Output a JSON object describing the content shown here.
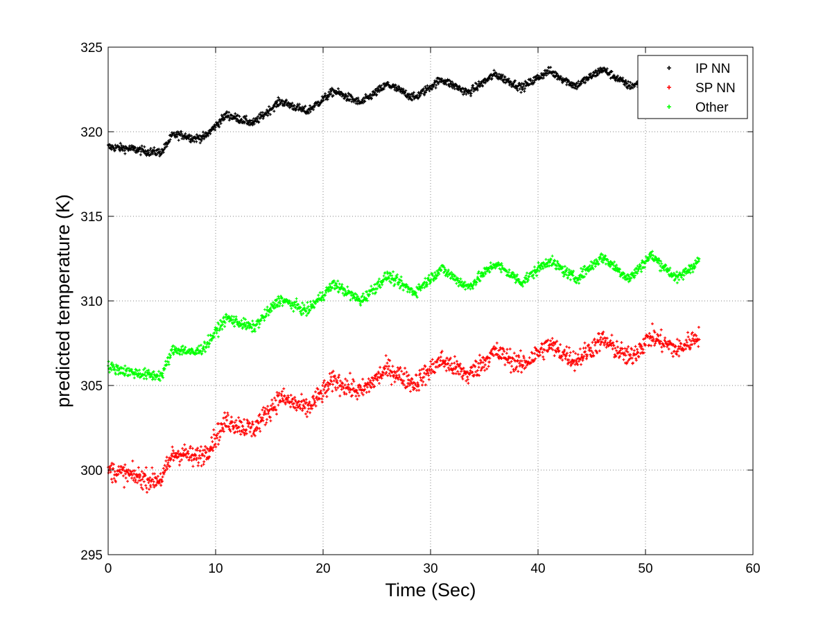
{
  "chart_data": {
    "type": "scatter",
    "title": "",
    "xlabel": "Time (Sec)",
    "ylabel": "predicted temperature (K)",
    "xlim": [
      0,
      60
    ],
    "ylim": [
      295,
      325
    ],
    "xticks": [
      0,
      10,
      20,
      30,
      40,
      50,
      60
    ],
    "yticks": [
      295,
      300,
      305,
      310,
      315,
      320,
      325
    ],
    "grid": true,
    "legend_position": "top-right",
    "series": [
      {
        "name": "IP NN",
        "color": "#000000",
        "noise": 0.12,
        "x": [
          0,
          2,
          4,
          5,
          6,
          7,
          8,
          9,
          11,
          13.5,
          16,
          18.5,
          21,
          23.5,
          26,
          28.5,
          31,
          33.5,
          36,
          38.5,
          41,
          43.5,
          46,
          48.5,
          50.5,
          55
        ],
        "y": [
          319.1,
          319.0,
          318.8,
          318.8,
          319.8,
          319.8,
          319.6,
          319.7,
          321.0,
          320.5,
          321.8,
          321.2,
          322.4,
          321.7,
          322.8,
          322.0,
          323.1,
          322.3,
          323.4,
          322.6,
          323.6,
          322.7,
          323.7,
          322.7,
          323.0,
          323.2
        ]
      },
      {
        "name": "SP NN",
        "color": "#ff0000",
        "noise": 0.3,
        "x": [
          0,
          2,
          4,
          5,
          6,
          7,
          8,
          9,
          11,
          13.5,
          16,
          18.5,
          21,
          23.5,
          26,
          28.5,
          31,
          33.5,
          36,
          38.5,
          41,
          43.5,
          46,
          48.5,
          50.5,
          53,
          55
        ],
        "y": [
          300.0,
          299.7,
          299.4,
          299.5,
          300.9,
          301.0,
          300.7,
          301.0,
          302.9,
          302.4,
          304.3,
          303.6,
          305.3,
          304.6,
          306.0,
          305.1,
          306.5,
          305.6,
          307.0,
          306.2,
          307.4,
          306.5,
          307.7,
          306.6,
          307.9,
          307.1,
          308.0
        ]
      },
      {
        "name": "Other",
        "color": "#00ff00",
        "noise": 0.16,
        "x": [
          0,
          2,
          4,
          5,
          6,
          7,
          8,
          9,
          11,
          13.5,
          16,
          18.5,
          21,
          23.5,
          26,
          28.5,
          31,
          33.5,
          36,
          38.5,
          41,
          43.5,
          46,
          48.5,
          50.5,
          53,
          55
        ],
        "y": [
          306.1,
          305.8,
          305.6,
          305.6,
          307.1,
          307.1,
          306.9,
          307.3,
          309.0,
          308.4,
          310.1,
          309.4,
          311.0,
          310.0,
          311.5,
          310.5,
          311.9,
          310.8,
          312.2,
          311.1,
          312.4,
          311.3,
          312.6,
          311.3,
          312.7,
          311.3,
          312.4
        ]
      }
    ]
  }
}
